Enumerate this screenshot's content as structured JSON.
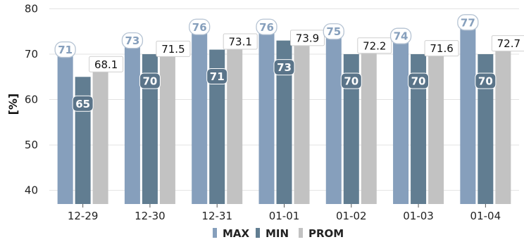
{
  "chart_data": {
    "type": "bar",
    "ylabel": "[%]",
    "ylim": [
      37,
      81
    ],
    "yticks": [
      40,
      50,
      60,
      70,
      80
    ],
    "grid": true,
    "legend_placement": "bottom-center",
    "categories": [
      "12-29",
      "12-30",
      "12-31",
      "01-01",
      "01-02",
      "01-03",
      "01-04"
    ],
    "series": [
      {
        "name": "MAX",
        "color": "#869fbc",
        "label_text_color": "#869fbc",
        "label_style": "white-rounded",
        "values": [
          71,
          73,
          76,
          76,
          75,
          74,
          77
        ]
      },
      {
        "name": "MIN",
        "color": "#617d91",
        "label_text_color": "#ffffff",
        "label_style": "dark-rounded",
        "values": [
          65,
          70,
          71,
          73,
          70,
          70,
          70
        ]
      },
      {
        "name": "PROM",
        "color": "#c2c2c2",
        "label_text_color": "#111111",
        "label_style": "white-box",
        "values": [
          68.1,
          71.5,
          73.1,
          73.9,
          72.2,
          71.6,
          72.7
        ]
      }
    ]
  }
}
